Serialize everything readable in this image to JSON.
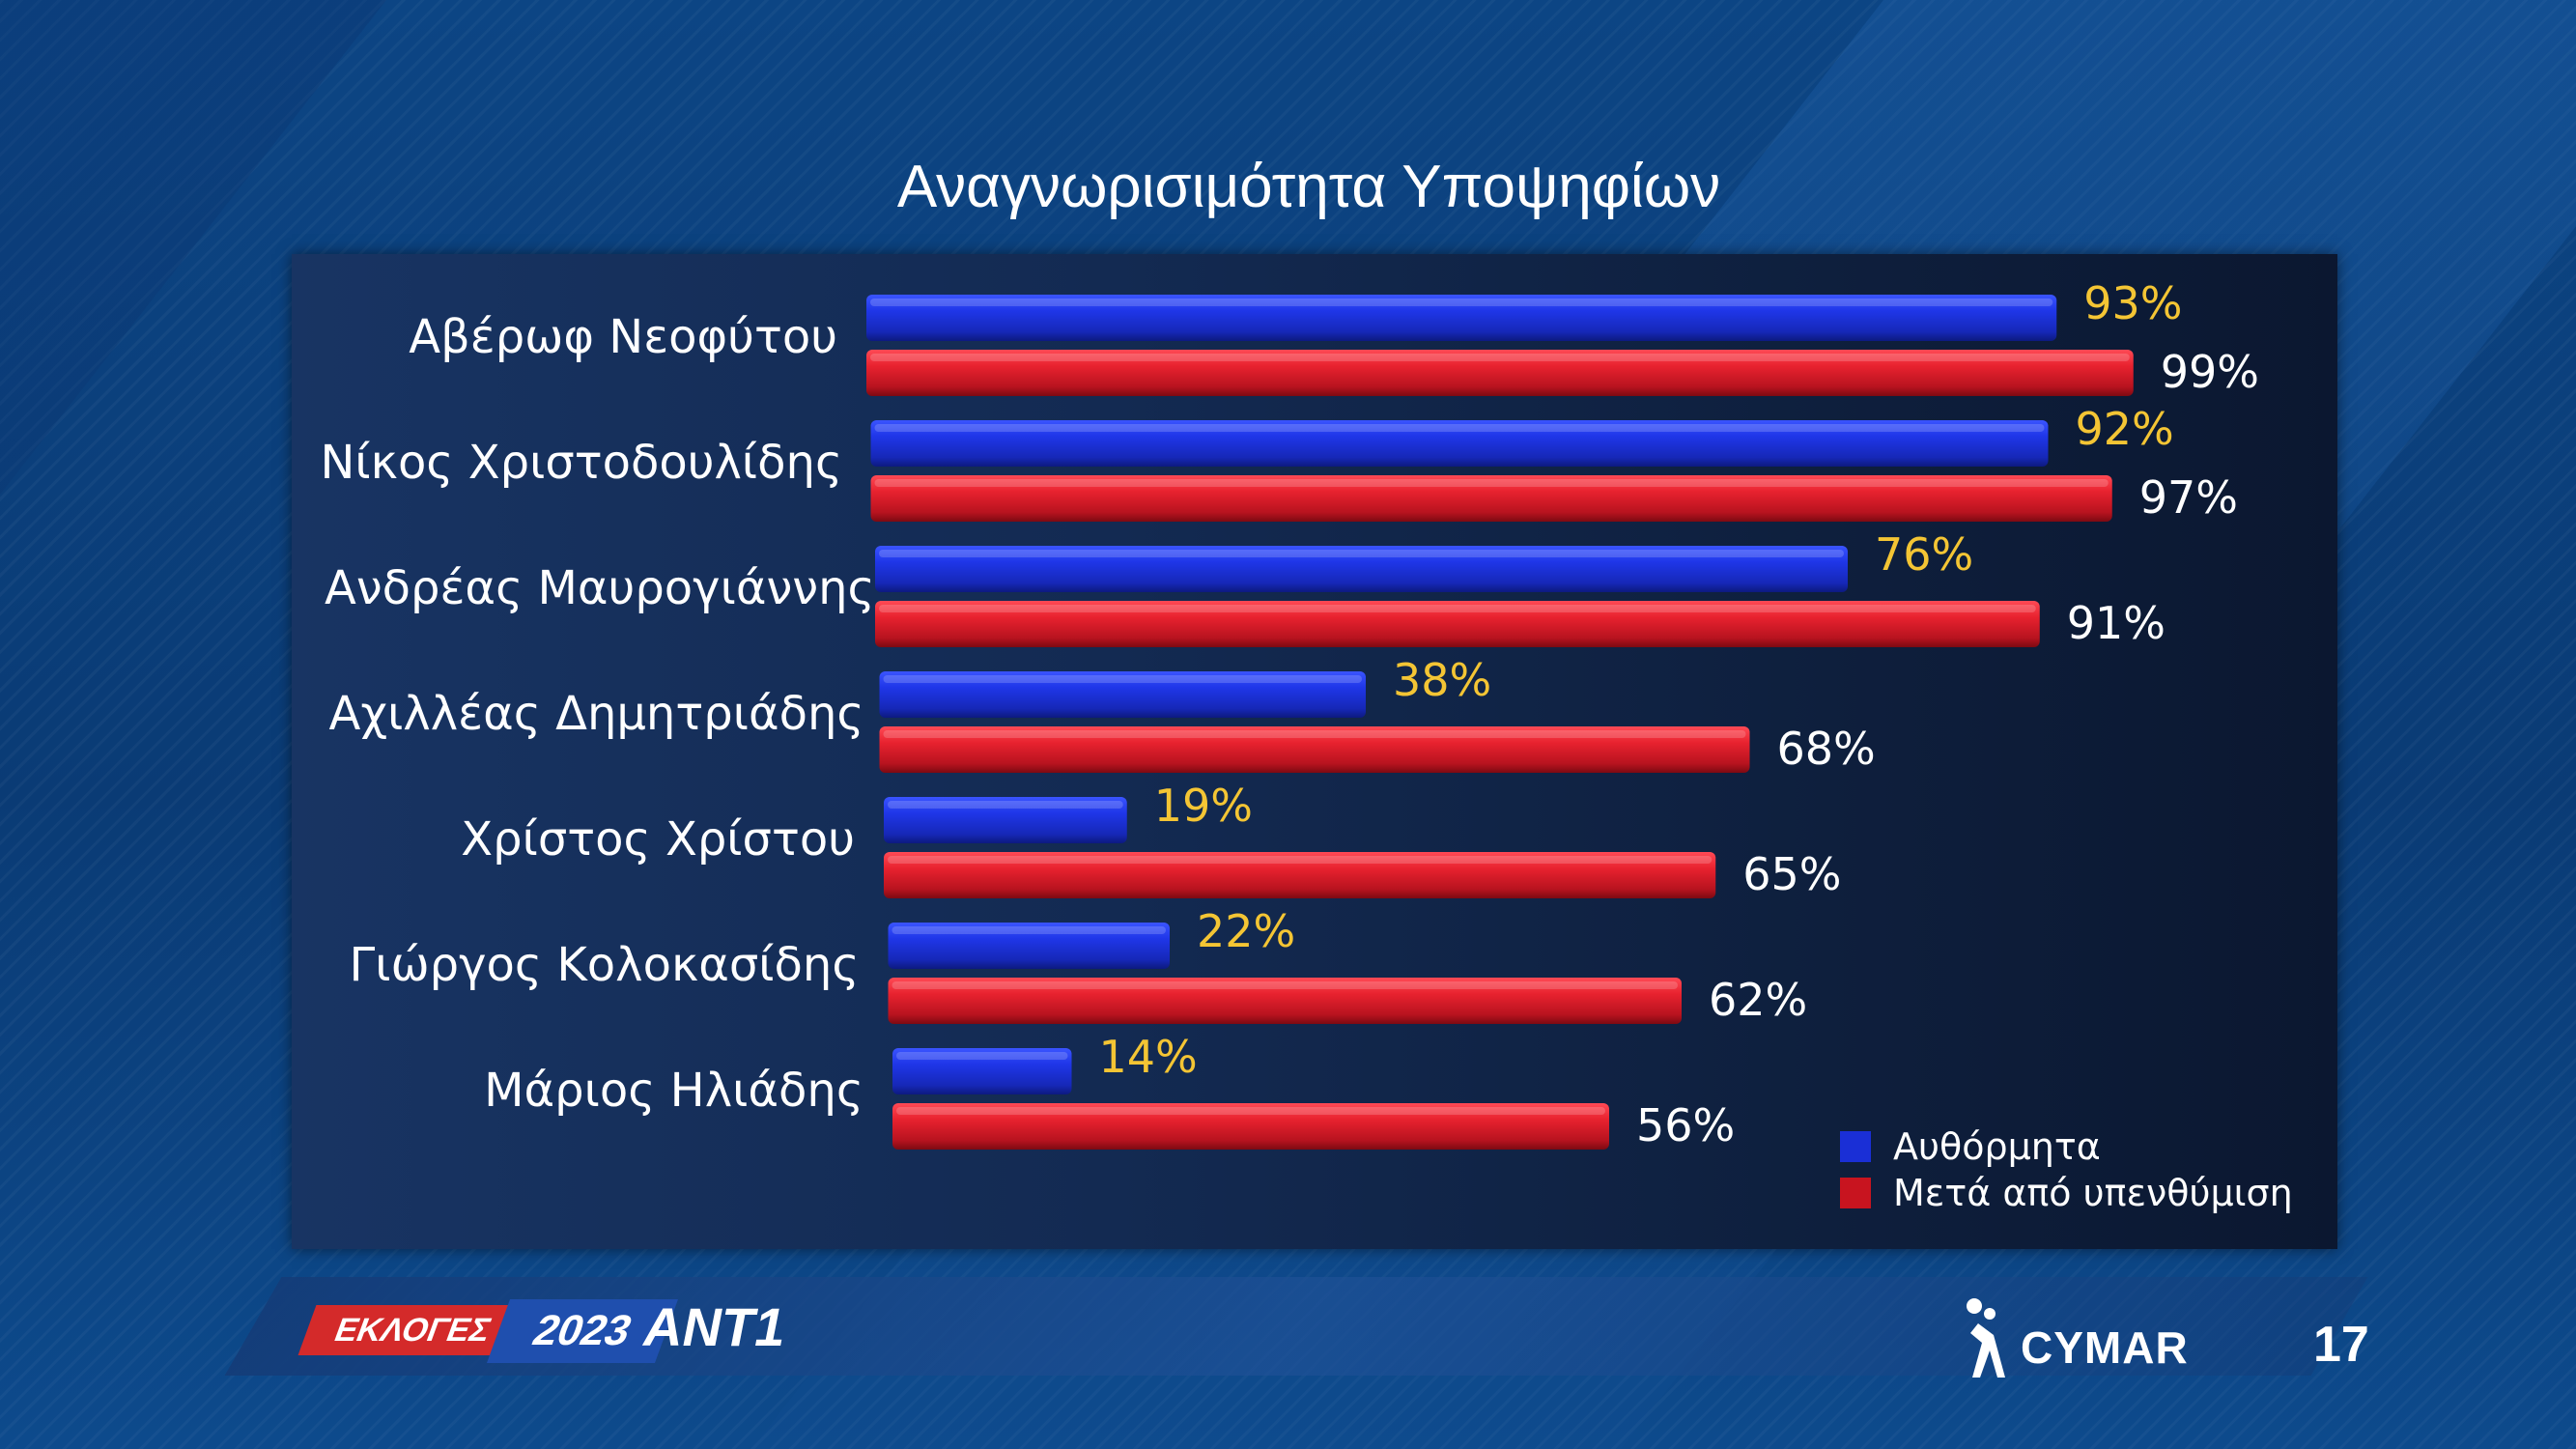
{
  "title": "Αναγνωρισιμότητα Υποψηφίων",
  "colors": {
    "series_blue": "#1a2fd6",
    "series_red": "#d6172a",
    "value_blue": "#f4c534",
    "value_red": "#ffffff"
  },
  "chart_data": {
    "type": "bar",
    "orientation": "horizontal",
    "categories": [
      "Αβέρωφ Νεοφύτου",
      "Νίκος Χριστοδουλίδης",
      "Ανδρέας Μαυρογιάννης",
      "Αχιλλέας Δημητριάδης",
      "Χρίστος Χρίστου",
      "Γιώργος Κολοκασίδης",
      "Μάριος Ηλιάδης"
    ],
    "series": [
      {
        "name": "Αυθόρμητα",
        "values": [
          93,
          92,
          76,
          38,
          19,
          22,
          14
        ],
        "labels": [
          "93%",
          "92%",
          "76%",
          "38%",
          "19%",
          "22%",
          "14%"
        ]
      },
      {
        "name": "Μετά από υπενθύμιση",
        "values": [
          99,
          97,
          91,
          68,
          65,
          62,
          56
        ],
        "labels": [
          "99%",
          "97%",
          "91%",
          "68%",
          "65%",
          "62%",
          "56%"
        ]
      }
    ],
    "xlim": [
      0,
      100
    ],
    "grid": false,
    "legend_position": "bottom-right"
  },
  "footer": {
    "elections_label": "ΕΚΛΟΓΕΣ",
    "year_label": "2023",
    "channel_label": "ANT1",
    "pollster_label": "CYMAR",
    "page_number": "17"
  }
}
